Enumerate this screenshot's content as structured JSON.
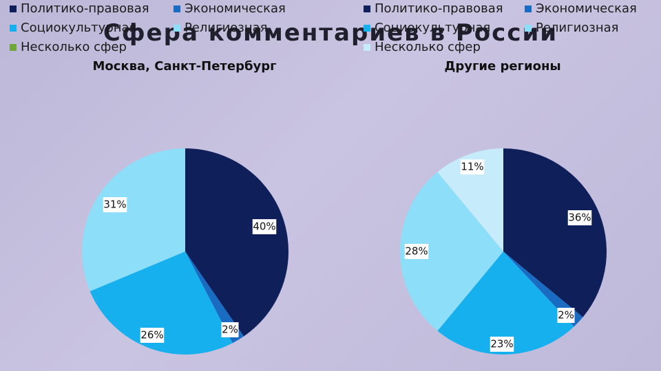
{
  "slide": {
    "title": "Сфера комментариев в России"
  },
  "colors": {
    "political": "#0f1f5a",
    "economic": "#1a6bc2",
    "sociocultural": "#16b0ee",
    "religious": "#8ddef8",
    "multiple_left": "#6fa83a",
    "multiple_right": "#c6ebfb"
  },
  "chart_data": [
    {
      "type": "pie",
      "title": "Москва, Санкт-Петербург",
      "legend": [
        "Политико-правовая",
        "Экономическая",
        "Социокультурная",
        "Религиозная",
        "Несколько сфер"
      ],
      "categories": [
        "Политико-правовая",
        "Экономическая",
        "Социокультурная",
        "Религиозная",
        "Несколько сфер"
      ],
      "values": [
        40,
        2,
        26,
        31,
        0
      ],
      "labels": [
        "40%",
        "2%",
        "26%",
        "31%",
        ""
      ],
      "legend_placement": "top"
    },
    {
      "type": "pie",
      "title": "Другие регионы",
      "legend": [
        "Политико-правовая",
        "Экономическая",
        "Социокультурная",
        "Религиозная",
        "Несколько сфер"
      ],
      "categories": [
        "Политико-правовая",
        "Экономическая",
        "Социокультурная",
        "Религиозная",
        "Несколько сфер"
      ],
      "values": [
        36,
        2,
        23,
        28,
        11
      ],
      "labels": [
        "36%",
        "2%",
        "23%",
        "28%",
        "11%"
      ],
      "legend_placement": "top"
    }
  ]
}
